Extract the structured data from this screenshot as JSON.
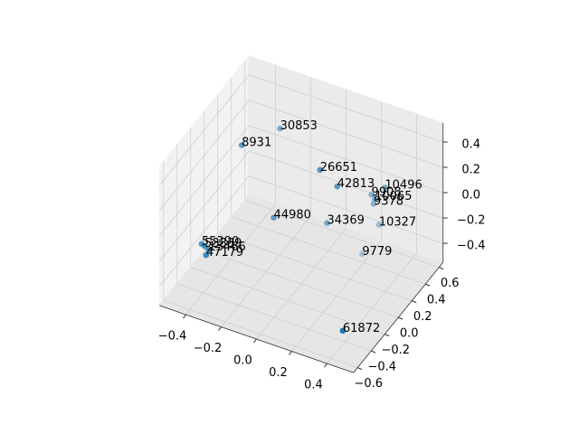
{
  "chart_data": {
    "type": "scatter3d",
    "xlim": [
      -0.55,
      0.55
    ],
    "ylim": [
      -0.66,
      0.66
    ],
    "zlim": [
      -0.55,
      0.55
    ],
    "xticks": [
      {
        "value": -0.4,
        "label": "−0.4"
      },
      {
        "value": -0.2,
        "label": "−0.2"
      },
      {
        "value": 0,
        "label": "0.0"
      },
      {
        "value": 0.2,
        "label": "0.2"
      },
      {
        "value": 0.4,
        "label": "0.4"
      }
    ],
    "yticks": [
      {
        "value": -0.6,
        "label": "−0.6"
      },
      {
        "value": -0.4,
        "label": "−0.4"
      },
      {
        "value": -0.2,
        "label": "−0.2"
      },
      {
        "value": 0,
        "label": "0.0"
      },
      {
        "value": 0.2,
        "label": "0.2"
      },
      {
        "value": 0.4,
        "label": "0.4"
      },
      {
        "value": 0.6,
        "label": "0.6"
      }
    ],
    "zticks": [
      {
        "value": -0.4,
        "label": "−0.4"
      },
      {
        "value": -0.2,
        "label": "−0.2"
      },
      {
        "value": 0,
        "label": "0.0"
      },
      {
        "value": 0.2,
        "label": "0.2"
      },
      {
        "value": 0.4,
        "label": "0.4"
      }
    ],
    "grid": true,
    "series": [
      {
        "color": "#1f77b4",
        "labels": [
          "30853",
          "8931",
          "26651",
          "42813",
          "10496",
          "9908",
          "10065",
          "9378",
          "44980",
          "34369",
          "10327",
          "9779",
          "55390",
          "53339",
          "13466",
          "47179",
          "61872"
        ],
        "x": [
          -0.22,
          -0.33,
          0.06,
          0.15,
          0.32,
          0.24,
          0.27,
          0.26,
          -0.11,
          0.1,
          0.29,
          0.23,
          -0.38,
          -0.36,
          -0.33,
          -0.32,
          0.42
        ],
        "y": [
          0.26,
          -0.02,
          0.12,
          0.14,
          0.4,
          0.41,
          0.38,
          0.39,
          -0.12,
          0.12,
          0.39,
          0.3,
          -0.48,
          -0.49,
          -0.51,
          -0.57,
          -0.48
        ],
        "z": [
          0.4,
          0.4,
          0.3,
          0.2,
          0.1,
          0,
          0,
          -0.05,
          0,
          -0.1,
          -0.2,
          -0.4,
          -0.1,
          -0.1,
          -0.1,
          -0.1,
          -0.4
        ]
      }
    ]
  }
}
